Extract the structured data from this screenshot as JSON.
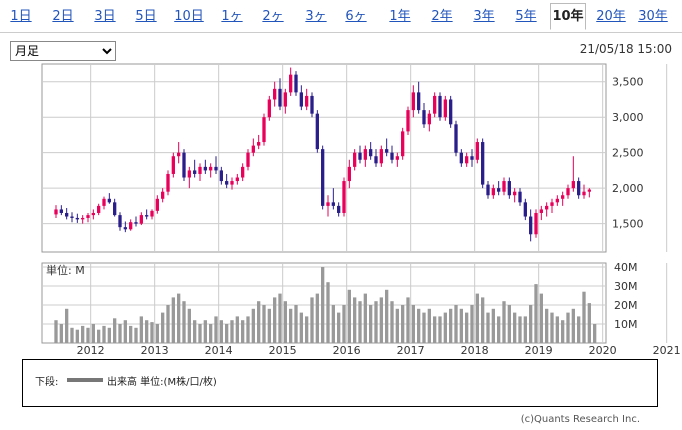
{
  "tabs": [
    {
      "label": "1日"
    },
    {
      "label": "2日"
    },
    {
      "label": "3日"
    },
    {
      "label": "5日"
    },
    {
      "label": "10日"
    },
    {
      "label": "1ヶ月"
    },
    {
      "label": "2ヶ月"
    },
    {
      "label": "3ヶ月"
    },
    {
      "label": "6ヶ月"
    },
    {
      "label": "1年"
    },
    {
      "label": "2年"
    },
    {
      "label": "3年"
    },
    {
      "label": "5年"
    },
    {
      "label": "10年"
    },
    {
      "label": "20年"
    },
    {
      "label": "30年"
    }
  ],
  "active_tab": "10年",
  "period_select": {
    "value": "月足"
  },
  "date_label": "21/05/18 15:00",
  "volume_unit_label": "単位: M",
  "legend": {
    "label": "下段:",
    "text": "出来高 単位:(M株/口/枚)"
  },
  "credit": "(c)Quants Research Inc.",
  "colors": {
    "up": "#e8005a",
    "down": "#2a1f8a",
    "volume": "#999999",
    "link": "#2255bb"
  },
  "chart_data": {
    "type": "candlestick",
    "x_ticks": [
      "2012",
      "2013",
      "2014",
      "2015",
      "2016",
      "2017",
      "2018",
      "2019",
      "2020",
      "2021"
    ],
    "price_axis": {
      "ticks": [
        "3,500",
        "3,000",
        "2,500",
        "2,000",
        "1,500"
      ],
      "values": [
        3500,
        3000,
        2500,
        2000,
        1500
      ],
      "ylim": [
        1100,
        3750
      ]
    },
    "volume_axis": {
      "ticks": [
        "40M",
        "30M",
        "20M",
        "10M"
      ],
      "values": [
        40,
        30,
        20,
        10
      ],
      "ylim": [
        0,
        40
      ]
    },
    "start": "2011-06",
    "ohlc": [
      [
        1630,
        1760,
        1580,
        1700
      ],
      [
        1700,
        1760,
        1620,
        1650
      ],
      [
        1650,
        1720,
        1560,
        1600
      ],
      [
        1600,
        1660,
        1520,
        1580
      ],
      [
        1580,
        1640,
        1510,
        1560
      ],
      [
        1560,
        1620,
        1500,
        1580
      ],
      [
        1580,
        1650,
        1520,
        1620
      ],
      [
        1620,
        1700,
        1560,
        1650
      ],
      [
        1650,
        1780,
        1620,
        1750
      ],
      [
        1750,
        1880,
        1700,
        1850
      ],
      [
        1850,
        1930,
        1780,
        1800
      ],
      [
        1800,
        1850,
        1600,
        1620
      ],
      [
        1620,
        1660,
        1400,
        1450
      ],
      [
        1450,
        1530,
        1380,
        1420
      ],
      [
        1420,
        1560,
        1400,
        1520
      ],
      [
        1520,
        1600,
        1460,
        1500
      ],
      [
        1500,
        1660,
        1480,
        1620
      ],
      [
        1620,
        1700,
        1560,
        1600
      ],
      [
        1600,
        1700,
        1560,
        1680
      ],
      [
        1680,
        1900,
        1640,
        1850
      ],
      [
        1850,
        2000,
        1800,
        1950
      ],
      [
        1950,
        2250,
        1900,
        2200
      ],
      [
        2200,
        2500,
        2150,
        2450
      ],
      [
        2450,
        2650,
        2350,
        2500
      ],
      [
        2500,
        2550,
        2100,
        2150
      ],
      [
        2150,
        2300,
        2000,
        2250
      ],
      [
        2250,
        2400,
        2150,
        2200
      ],
      [
        2200,
        2350,
        2100,
        2300
      ],
      [
        2300,
        2400,
        2200,
        2250
      ],
      [
        2250,
        2350,
        2150,
        2300
      ],
      [
        2300,
        2450,
        2200,
        2250
      ],
      [
        2250,
        2300,
        2050,
        2100
      ],
      [
        2100,
        2200,
        2000,
        2050
      ],
      [
        2050,
        2150,
        1980,
        2100
      ],
      [
        2100,
        2200,
        2050,
        2150
      ],
      [
        2150,
        2350,
        2100,
        2300
      ],
      [
        2300,
        2550,
        2250,
        2500
      ],
      [
        2500,
        2700,
        2450,
        2600
      ],
      [
        2600,
        2750,
        2550,
        2650
      ],
      [
        2650,
        3050,
        2600,
        3000
      ],
      [
        3000,
        3300,
        2950,
        3250
      ],
      [
        3250,
        3500,
        3150,
        3400
      ],
      [
        3400,
        3550,
        3100,
        3150
      ],
      [
        3150,
        3400,
        3050,
        3350
      ],
      [
        3350,
        3700,
        3300,
        3600
      ],
      [
        3600,
        3650,
        3300,
        3350
      ],
      [
        3350,
        3450,
        3100,
        3150
      ],
      [
        3150,
        3400,
        3100,
        3300
      ],
      [
        3300,
        3350,
        3000,
        3050
      ],
      [
        3050,
        3100,
        2500,
        2550
      ],
      [
        2550,
        2600,
        1700,
        1750
      ],
      [
        1750,
        1900,
        1600,
        1800
      ],
      [
        1800,
        2000,
        1700,
        1750
      ],
      [
        1750,
        1800,
        1600,
        1650
      ],
      [
        1650,
        2150,
        1600,
        2100
      ],
      [
        2100,
        2400,
        2000,
        2300
      ],
      [
        2300,
        2550,
        2250,
        2500
      ],
      [
        2500,
        2600,
        2350,
        2400
      ],
      [
        2400,
        2600,
        2300,
        2550
      ],
      [
        2550,
        2650,
        2400,
        2450
      ],
      [
        2450,
        2550,
        2300,
        2350
      ],
      [
        2350,
        2600,
        2300,
        2550
      ],
      [
        2550,
        2700,
        2450,
        2500
      ],
      [
        2500,
        2600,
        2350,
        2400
      ],
      [
        2400,
        2500,
        2300,
        2450
      ],
      [
        2450,
        2850,
        2400,
        2800
      ],
      [
        2800,
        3150,
        2750,
        3100
      ],
      [
        3100,
        3450,
        3000,
        3350
      ],
      [
        3350,
        3500,
        3050,
        3100
      ],
      [
        3100,
        3200,
        2850,
        2900
      ],
      [
        2900,
        3100,
        2800,
        3050
      ],
      [
        3050,
        3350,
        3000,
        3300
      ],
      [
        3300,
        3350,
        2950,
        3000
      ],
      [
        3000,
        3300,
        2950,
        3250
      ],
      [
        3250,
        3300,
        2850,
        2900
      ],
      [
        2900,
        2950,
        2450,
        2500
      ],
      [
        2500,
        2550,
        2300,
        2350
      ],
      [
        2350,
        2500,
        2300,
        2450
      ],
      [
        2450,
        2550,
        2300,
        2400
      ],
      [
        2400,
        2700,
        2350,
        2650
      ],
      [
        2650,
        2700,
        2000,
        2050
      ],
      [
        2050,
        2100,
        1850,
        1900
      ],
      [
        1900,
        2050,
        1850,
        2000
      ],
      [
        2000,
        2100,
        1900,
        1950
      ],
      [
        1950,
        2150,
        1900,
        2100
      ],
      [
        2100,
        2150,
        1850,
        1900
      ],
      [
        1900,
        2000,
        1800,
        1950
      ],
      [
        1950,
        2000,
        1750,
        1800
      ],
      [
        1800,
        1850,
        1550,
        1600
      ],
      [
        1600,
        1700,
        1250,
        1350
      ],
      [
        1350,
        1700,
        1300,
        1650
      ],
      [
        1650,
        1750,
        1550,
        1700
      ],
      [
        1700,
        1800,
        1600,
        1750
      ],
      [
        1750,
        1850,
        1650,
        1800
      ],
      [
        1800,
        1900,
        1750,
        1850
      ],
      [
        1850,
        1950,
        1750,
        1900
      ],
      [
        1900,
        2050,
        1850,
        2000
      ],
      [
        2000,
        2450,
        1950,
        2100
      ],
      [
        2100,
        2150,
        1850,
        1900
      ],
      [
        1900,
        2050,
        1850,
        1950
      ],
      [
        1950,
        2000,
        1870,
        1980
      ]
    ],
    "volume": [
      12,
      10,
      18,
      8,
      7,
      9,
      8,
      10,
      7,
      9,
      8,
      13,
      10,
      12,
      9,
      8,
      14,
      12,
      11,
      10,
      16,
      20,
      24,
      26,
      22,
      18,
      12,
      10,
      12,
      10,
      14,
      12,
      10,
      12,
      14,
      12,
      14,
      18,
      22,
      20,
      18,
      24,
      26,
      22,
      18,
      20,
      16,
      14,
      24,
      26,
      40,
      32,
      20,
      16,
      20,
      28,
      24,
      22,
      26,
      20,
      22,
      24,
      28,
      22,
      18,
      20,
      24,
      20,
      18,
      16,
      18,
      14,
      14,
      16,
      18,
      20,
      18,
      16,
      20,
      26,
      24,
      16,
      18,
      14,
      22,
      20,
      16,
      14,
      14,
      20,
      31,
      26,
      18,
      16,
      14,
      12,
      16,
      18,
      14,
      27,
      21,
      10
    ]
  }
}
